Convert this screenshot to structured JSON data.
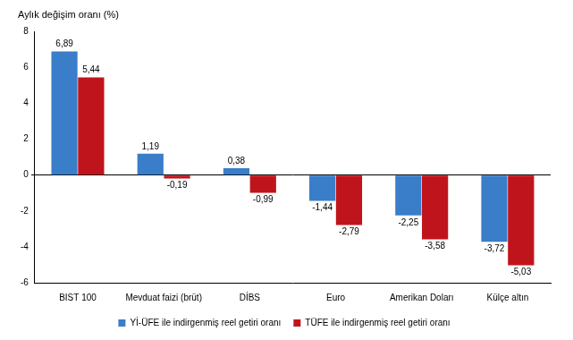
{
  "chart_data": {
    "type": "bar",
    "y_label": "Aylık değişim oranı (%)",
    "categories": [
      "BIST 100",
      "Mevduat faizi (brüt)",
      "DİBS",
      "Euro",
      "Amerikan Doları",
      "Külçe altın"
    ],
    "series": [
      {
        "name": "Yİ-ÜFE ile indirgenmiş reel getiri oranı",
        "color": "#3a7dc9",
        "values": [
          6.89,
          1.19,
          0.38,
          -1.44,
          -2.25,
          -3.72
        ],
        "value_labels": [
          "6,89",
          "1,19",
          "0,38",
          "-1,44",
          "-2,25",
          "-3,72"
        ]
      },
      {
        "name": "TÜFE ile indirgenmiş reel getiri oranı",
        "color": "#c0141c",
        "values": [
          5.44,
          -0.19,
          -0.99,
          -2.79,
          -3.58,
          -5.03
        ],
        "value_labels": [
          "5,44",
          "-0,19",
          "-0,99",
          "-2,79",
          "-3,58",
          "-5,03"
        ]
      }
    ],
    "ylim": [
      -6,
      8
    ],
    "yticks": [
      -6,
      -4,
      -2,
      0,
      2,
      4,
      6,
      8
    ],
    "grid": false,
    "legend": "bottom",
    "data_labels": true
  }
}
